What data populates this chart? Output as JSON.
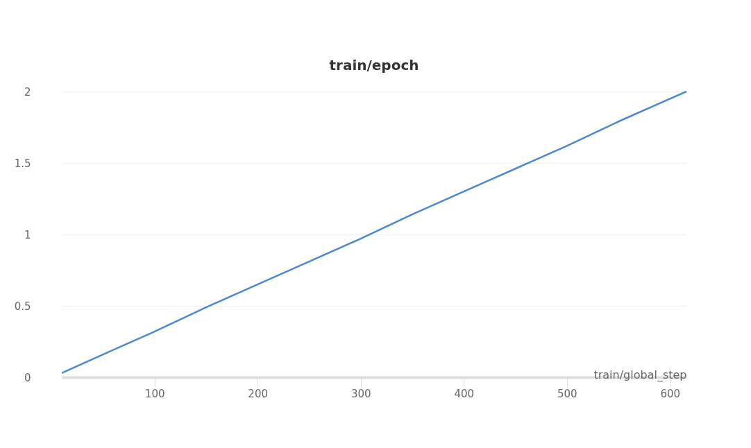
{
  "chart_data": {
    "type": "line",
    "title": "train/epoch",
    "xlabel": "train/global_step",
    "x": [
      10,
      50,
      100,
      150,
      200,
      250,
      300,
      350,
      400,
      450,
      500,
      550,
      600,
      616
    ],
    "series": [
      {
        "color": "#4a88d0",
        "values": [
          0.03,
          0.16,
          0.32,
          0.49,
          0.65,
          0.81,
          0.97,
          1.14,
          1.3,
          1.46,
          1.62,
          1.79,
          1.95,
          2.0
        ]
      }
    ],
    "xlim": [
      10,
      616
    ],
    "xticks": [
      100,
      200,
      300,
      400,
      500,
      600
    ],
    "ylim": [
      0,
      2
    ],
    "yticks": [
      0,
      0.5,
      1,
      1.5,
      2
    ],
    "grid": "y",
    "marker": "none",
    "line_style": "solid",
    "legend": false
  }
}
